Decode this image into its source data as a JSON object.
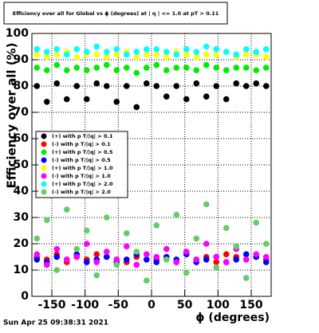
{
  "chart_data": {
    "type": "scatter",
    "title": "Efficiency over all for Global vs ϕ (degrees) at | η | <= 1.0 at pT > 0.11",
    "x_label": "ϕ (degrees)",
    "y_label": "Efficiency over all (%)",
    "timestamp": "Sun Apr 25 09:38:31 2021",
    "xlim": [
      -180,
      180
    ],
    "ylim": [
      0,
      100
    ],
    "xticks": [
      -150,
      -100,
      -50,
      0,
      50,
      100,
      150
    ],
    "yticks": [
      0,
      10,
      20,
      30,
      40,
      50,
      60,
      70,
      80,
      90,
      100
    ],
    "grid": true,
    "x": [
      -172.5,
      -157.5,
      -142.5,
      -127.5,
      -112.5,
      -97.5,
      -82.5,
      -67.5,
      -52.5,
      -37.5,
      -22.5,
      -7.5,
      7.5,
      22.5,
      37.5,
      52.5,
      67.5,
      82.5,
      97.5,
      112.5,
      127.5,
      142.5,
      157.5,
      172.5
    ],
    "series": [
      {
        "name": "(+) with p T/|q| > 0.1",
        "color": "#000000",
        "values": [
          80,
          74,
          81,
          75,
          80,
          75,
          81,
          80,
          74,
          80,
          72,
          81,
          80,
          76,
          80,
          75,
          81,
          76,
          80,
          75,
          81,
          80,
          81,
          80
        ]
      },
      {
        "name": "(-) with p T/|q| > 0.1",
        "color": "#ff0000",
        "values": [
          15,
          14,
          16,
          13,
          15,
          14,
          16,
          15,
          14,
          13,
          15,
          16,
          14,
          15,
          13,
          16,
          14,
          15,
          13,
          16,
          15,
          14,
          15,
          14
        ]
      },
      {
        "name": "(+) with p T/|q| > 0.5",
        "color": "#00ee00",
        "values": [
          87,
          86,
          88,
          86,
          87,
          86,
          87,
          88,
          86,
          87,
          85,
          87,
          88,
          86,
          87,
          87,
          86,
          88,
          87,
          86,
          87,
          87,
          86,
          87
        ]
      },
      {
        "name": "(-) with p T/|q| > 0.5",
        "color": "#0000ff",
        "values": [
          14,
          13,
          15,
          14,
          16,
          13,
          14,
          15,
          13,
          14,
          16,
          14,
          13,
          15,
          14,
          16,
          13,
          14,
          15,
          13,
          14,
          16,
          15,
          13
        ]
      },
      {
        "name": "(+) with p T/|q| > 1.0",
        "color": "#ffff00",
        "values": [
          92,
          91,
          92,
          93,
          91,
          92,
          92,
          91,
          92,
          93,
          91,
          92,
          92,
          91,
          93,
          92,
          91,
          92,
          92,
          93,
          91,
          92,
          92,
          91
        ]
      },
      {
        "name": "(-) with p T/|q| > 1.0",
        "color": "#ff00ff",
        "values": [
          16,
          12,
          18,
          14,
          15,
          20,
          13,
          17,
          14,
          19,
          12,
          16,
          15,
          18,
          13,
          17,
          14,
          20,
          15,
          13,
          18,
          14,
          16,
          15
        ]
      },
      {
        "name": "(+) with p T/|q| > 2.0",
        "color": "#00ffff",
        "values": [
          94,
          93,
          94,
          92,
          94,
          93,
          95,
          93,
          94,
          92,
          93,
          94,
          94,
          93,
          92,
          94,
          93,
          95,
          94,
          93,
          92,
          94,
          93,
          94
        ]
      },
      {
        "name": "(-) with p T/|q| > 2.0",
        "color": "#66cc66",
        "values": [
          22,
          29,
          10,
          33,
          18,
          25,
          8,
          30,
          12,
          24,
          17,
          6,
          27,
          14,
          31,
          9,
          22,
          35,
          11,
          26,
          19,
          7,
          28,
          20
        ]
      }
    ]
  }
}
